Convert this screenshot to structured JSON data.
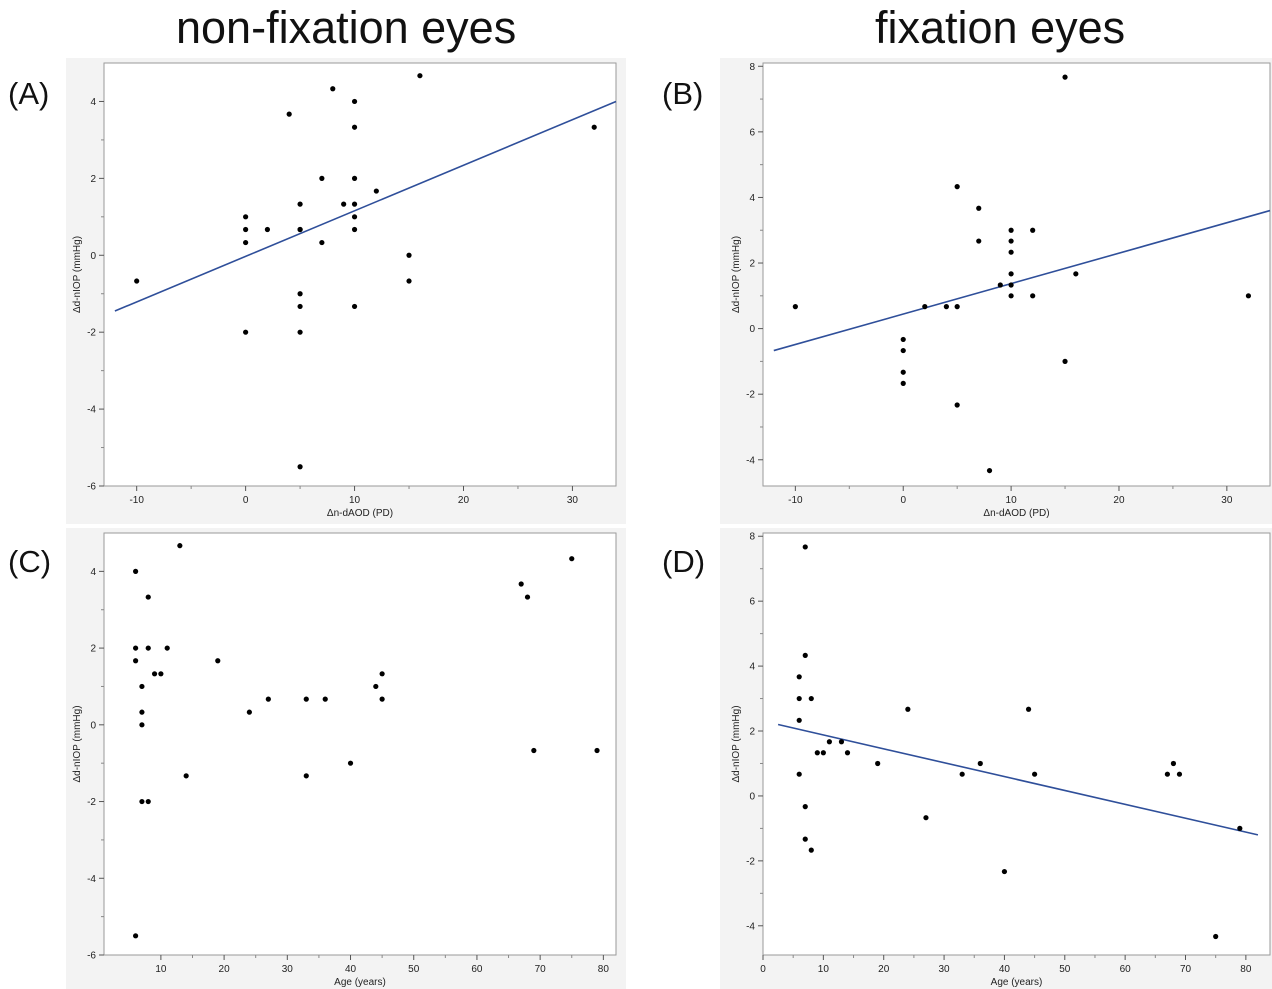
{
  "headings": {
    "left": "non-fixation eyes",
    "right": "fixation eyes"
  },
  "chart_data": [
    {
      "id": "A",
      "panel_label": "(A)",
      "type": "scatter",
      "xlabel": "Δn-dAOD (PD)",
      "ylabel": "Δd-nIOP (mmHg)",
      "xlim": [
        -13,
        34
      ],
      "ylim": [
        -6,
        5
      ],
      "xticks": [
        -10,
        0,
        10,
        20,
        30
      ],
      "yticks": [
        -6,
        -4,
        -2,
        0,
        2,
        4
      ],
      "points": [
        [
          -10,
          -0.67
        ],
        [
          0,
          1.0
        ],
        [
          0,
          0.67
        ],
        [
          0,
          0.33
        ],
        [
          0,
          -2.0
        ],
        [
          2,
          0.67
        ],
        [
          4,
          3.67
        ],
        [
          5,
          1.33
        ],
        [
          5,
          0.67
        ],
        [
          5,
          0.67
        ],
        [
          5,
          -1.0
        ],
        [
          5,
          -1.33
        ],
        [
          5,
          -2.0
        ],
        [
          5,
          -5.5
        ],
        [
          7,
          2.0
        ],
        [
          7,
          0.33
        ],
        [
          8,
          4.33
        ],
        [
          9,
          1.33
        ],
        [
          10,
          4.0
        ],
        [
          10,
          3.33
        ],
        [
          10,
          2.0
        ],
        [
          10,
          1.33
        ],
        [
          10,
          1.0
        ],
        [
          10,
          0.67
        ],
        [
          10,
          -1.33
        ],
        [
          12,
          1.67
        ],
        [
          15,
          0.0
        ],
        [
          15,
          -0.67
        ],
        [
          16,
          4.67
        ],
        [
          32,
          3.33
        ]
      ],
      "fit_line": [
        [
          -12,
          -1.45
        ],
        [
          34,
          4.0
        ]
      ]
    },
    {
      "id": "B",
      "panel_label": "(B)",
      "type": "scatter",
      "xlabel": "Δn-dAOD (PD)",
      "ylabel": "Δd-nIOP (mmHg)",
      "xlim": [
        -13,
        34
      ],
      "ylim": [
        -4.8,
        8.1
      ],
      "xticks": [
        -10,
        0,
        10,
        20,
        30
      ],
      "yticks": [
        -4,
        -2,
        0,
        2,
        4,
        6,
        8
      ],
      "points": [
        [
          -10,
          0.67
        ],
        [
          0,
          -0.33
        ],
        [
          0,
          -0.67
        ],
        [
          0,
          -1.33
        ],
        [
          0,
          -1.67
        ],
        [
          2,
          0.67
        ],
        [
          4,
          0.67
        ],
        [
          5,
          4.33
        ],
        [
          5,
          0.67
        ],
        [
          5,
          -2.33
        ],
        [
          7,
          3.67
        ],
        [
          7,
          2.67
        ],
        [
          8,
          -4.33
        ],
        [
          9,
          1.33
        ],
        [
          10,
          3.0
        ],
        [
          10,
          2.67
        ],
        [
          10,
          2.33
        ],
        [
          10,
          1.67
        ],
        [
          10,
          1.33
        ],
        [
          10,
          1.0
        ],
        [
          12,
          3.0
        ],
        [
          12,
          1.0
        ],
        [
          15,
          7.67
        ],
        [
          15,
          -1.0
        ],
        [
          16,
          1.67
        ],
        [
          32,
          1.0
        ]
      ],
      "fit_line": [
        [
          -12,
          -0.67
        ],
        [
          34,
          3.6
        ]
      ]
    },
    {
      "id": "C",
      "panel_label": "(C)",
      "type": "scatter",
      "xlabel": "Age (years)",
      "ylabel": "Δd-nIOP (mmHg)",
      "xlim": [
        1,
        82
      ],
      "ylim": [
        -6,
        5
      ],
      "xticks": [
        10,
        20,
        30,
        40,
        50,
        60,
        70,
        80
      ],
      "yticks": [
        -6,
        -4,
        -2,
        0,
        2,
        4
      ],
      "points": [
        [
          6,
          4.0
        ],
        [
          6,
          2.0
        ],
        [
          6,
          1.67
        ],
        [
          6,
          -5.5
        ],
        [
          7,
          1.0
        ],
        [
          7,
          0.33
        ],
        [
          7,
          0.0
        ],
        [
          7,
          -2.0
        ],
        [
          8,
          3.33
        ],
        [
          8,
          2.0
        ],
        [
          8,
          -2.0
        ],
        [
          9,
          1.33
        ],
        [
          10,
          1.33
        ],
        [
          11,
          2.0
        ],
        [
          13,
          4.67
        ],
        [
          14,
          -1.33
        ],
        [
          19,
          1.67
        ],
        [
          24,
          0.33
        ],
        [
          27,
          0.67
        ],
        [
          33,
          0.67
        ],
        [
          33,
          -1.33
        ],
        [
          36,
          0.67
        ],
        [
          40,
          -1.0
        ],
        [
          44,
          1.0
        ],
        [
          45,
          1.33
        ],
        [
          45,
          0.67
        ],
        [
          67,
          3.67
        ],
        [
          68,
          3.33
        ],
        [
          69,
          -0.67
        ],
        [
          75,
          4.33
        ],
        [
          79,
          -0.67
        ]
      ],
      "fit_line": null
    },
    {
      "id": "D",
      "panel_label": "(D)",
      "type": "scatter",
      "xlabel": "Age (years)",
      "ylabel": "Δd-nIOP (mmHg)",
      "xlim": [
        0,
        84
      ],
      "ylim": [
        -4.9,
        8.1
      ],
      "xticks": [
        0,
        10,
        20,
        30,
        40,
        50,
        60,
        70,
        80
      ],
      "yticks": [
        -4,
        -2,
        0,
        2,
        4,
        6,
        8
      ],
      "points": [
        [
          6,
          3.67
        ],
        [
          6,
          3.0
        ],
        [
          6,
          2.33
        ],
        [
          6,
          0.67
        ],
        [
          7,
          7.67
        ],
        [
          7,
          4.33
        ],
        [
          7,
          -0.33
        ],
        [
          7,
          -1.33
        ],
        [
          8,
          3.0
        ],
        [
          8,
          -1.67
        ],
        [
          9,
          1.33
        ],
        [
          10,
          1.33
        ],
        [
          11,
          1.67
        ],
        [
          13,
          1.67
        ],
        [
          14,
          1.33
        ],
        [
          19,
          1.0
        ],
        [
          24,
          2.67
        ],
        [
          27,
          -0.67
        ],
        [
          33,
          0.67
        ],
        [
          36,
          1.0
        ],
        [
          40,
          -2.33
        ],
        [
          44,
          2.67
        ],
        [
          45,
          0.67
        ],
        [
          67,
          0.67
        ],
        [
          68,
          1.0
        ],
        [
          69,
          0.67
        ],
        [
          75,
          -4.33
        ],
        [
          79,
          -1.0
        ]
      ],
      "fit_line": [
        [
          2.5,
          2.2
        ],
        [
          82,
          -1.2
        ]
      ]
    }
  ]
}
